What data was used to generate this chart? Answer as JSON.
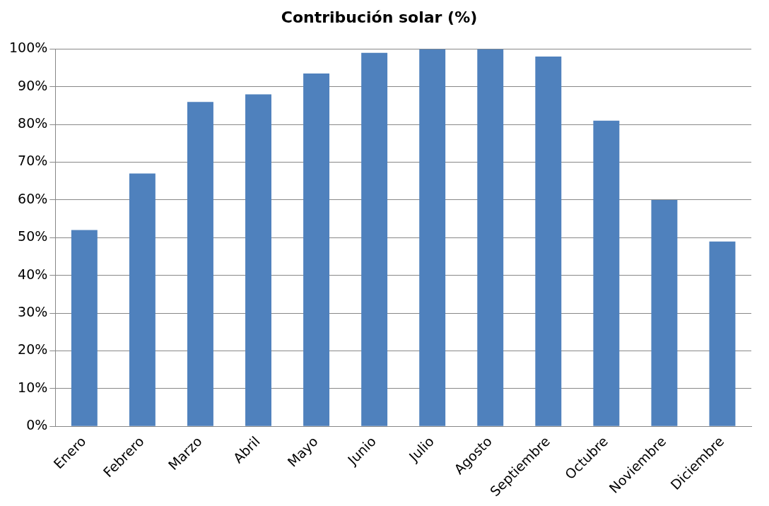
{
  "chart_data": {
    "type": "bar",
    "title": "Contribución solar (%)",
    "categories": [
      "Enero",
      "Febrero",
      "Marzo",
      "Abril",
      "Mayo",
      "Junio",
      "Julio",
      "Agosto",
      "Septiembre",
      "Octubre",
      "Noviembre",
      "Diciembre"
    ],
    "values": [
      52,
      67,
      86,
      88,
      93.5,
      99,
      100,
      100,
      98,
      81,
      60,
      49
    ],
    "color": "#4f81bd",
    "ylim": [
      0,
      100
    ],
    "yticks": [
      {
        "value": 0,
        "label": "0%"
      },
      {
        "value": 10,
        "label": "10%"
      },
      {
        "value": 20,
        "label": "20%"
      },
      {
        "value": 30,
        "label": "30%"
      },
      {
        "value": 40,
        "label": "40%"
      },
      {
        "value": 50,
        "label": "50%"
      },
      {
        "value": 60,
        "label": "60%"
      },
      {
        "value": 70,
        "label": "70%"
      },
      {
        "value": 80,
        "label": "80%"
      },
      {
        "value": 90,
        "label": "90%"
      },
      {
        "value": 100,
        "label": "100%"
      }
    ],
    "grid": "y",
    "legend": false
  }
}
